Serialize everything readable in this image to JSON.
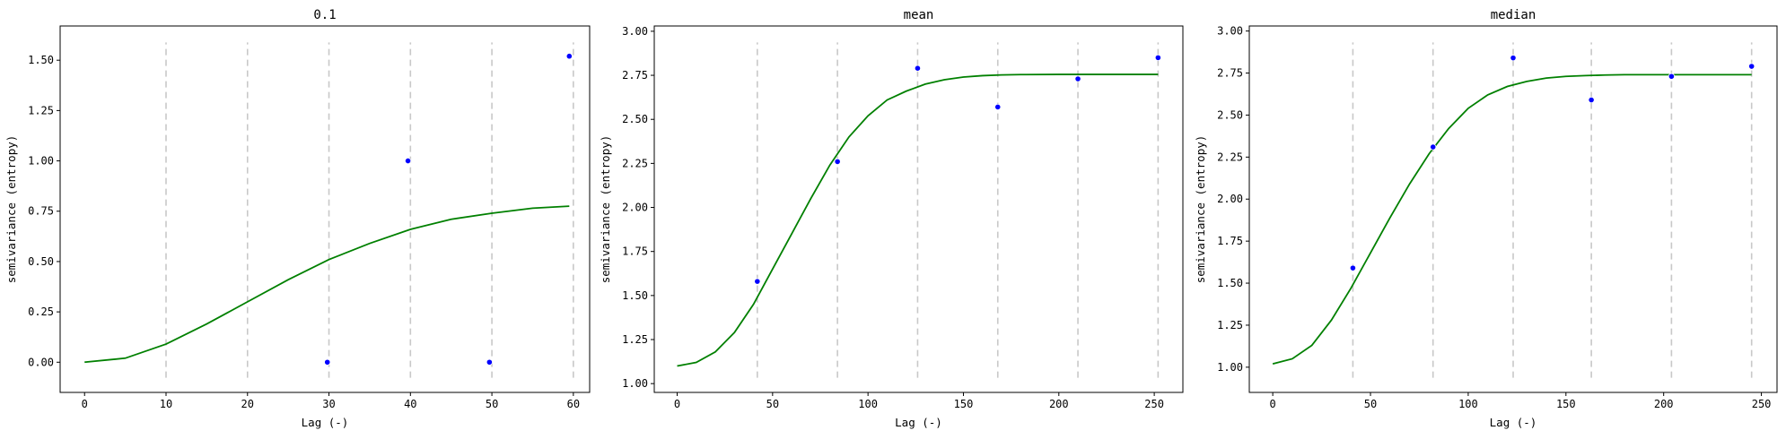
{
  "chart_data": [
    {
      "type": "line+scatter",
      "title": "0.1",
      "xlabel": "Lag (-)",
      "ylabel": "semivariance (entropy)",
      "xlim": [
        -3,
        62
      ],
      "ylim": [
        -0.15,
        1.67
      ],
      "xticks": [
        0,
        10,
        20,
        30,
        40,
        50,
        60
      ],
      "xtick_labels": [
        "0",
        "10",
        "20",
        "30",
        "40",
        "50",
        "60"
      ],
      "yticks": [
        0.0,
        0.25,
        0.5,
        0.75,
        1.0,
        1.25,
        1.5
      ],
      "ytick_labels": [
        "0.00",
        "0.25",
        "0.50",
        "0.75",
        "1.00",
        "1.25",
        "1.50"
      ],
      "bin_edges": [
        10,
        20,
        30,
        40,
        50,
        60
      ],
      "points": {
        "x": [
          29.8,
          39.7,
          49.7,
          59.5
        ],
        "y": [
          0.0,
          1.0,
          0.0,
          1.52
        ]
      },
      "model": {
        "x": [
          0,
          5,
          10,
          15,
          20,
          25,
          30,
          35,
          40,
          45,
          50,
          55,
          59.5
        ],
        "y": [
          0.0,
          0.02,
          0.09,
          0.19,
          0.3,
          0.41,
          0.51,
          0.59,
          0.66,
          0.71,
          0.74,
          0.765,
          0.775
        ]
      }
    },
    {
      "type": "line+scatter",
      "title": "mean",
      "xlabel": "Lag (-)",
      "ylabel": "semivariance (entropy)",
      "xlim": [
        -12,
        265
      ],
      "ylim": [
        0.95,
        3.03
      ],
      "xticks": [
        0,
        50,
        100,
        150,
        200,
        250
      ],
      "xtick_labels": [
        "0",
        "50",
        "100",
        "150",
        "200",
        "250"
      ],
      "yticks": [
        1.0,
        1.25,
        1.5,
        1.75,
        2.0,
        2.25,
        2.5,
        2.75,
        3.0
      ],
      "ytick_labels": [
        "1.00",
        "1.25",
        "1.50",
        "1.75",
        "2.00",
        "2.25",
        "2.50",
        "2.75",
        "3.00"
      ],
      "bin_edges": [
        42,
        84,
        126,
        168,
        210,
        252
      ],
      "points": {
        "x": [
          42,
          84,
          126,
          168,
          210,
          252
        ],
        "y": [
          1.58,
          2.26,
          2.79,
          2.57,
          2.73,
          2.85
        ]
      },
      "model": {
        "x": [
          0,
          10,
          20,
          30,
          40,
          50,
          60,
          70,
          80,
          90,
          100,
          110,
          120,
          130,
          140,
          150,
          160,
          170,
          180,
          200,
          220,
          252
        ],
        "y": [
          1.1,
          1.12,
          1.18,
          1.29,
          1.45,
          1.65,
          1.85,
          2.05,
          2.24,
          2.4,
          2.52,
          2.61,
          2.66,
          2.7,
          2.725,
          2.74,
          2.748,
          2.752,
          2.754,
          2.755,
          2.755,
          2.755
        ]
      }
    },
    {
      "type": "line+scatter",
      "title": "median",
      "xlabel": "Lag (-)",
      "ylabel": "semivariance (entropy)",
      "xlim": [
        -12,
        258
      ],
      "ylim": [
        0.85,
        3.03
      ],
      "xticks": [
        0,
        50,
        100,
        150,
        200,
        250
      ],
      "xtick_labels": [
        "0",
        "50",
        "100",
        "150",
        "200",
        "250"
      ],
      "yticks": [
        1.0,
        1.25,
        1.5,
        1.75,
        2.0,
        2.25,
        2.5,
        2.75,
        3.0
      ],
      "ytick_labels": [
        "1.00",
        "1.25",
        "1.50",
        "1.75",
        "2.00",
        "2.25",
        "2.50",
        "2.75",
        "3.00"
      ],
      "bin_edges": [
        41,
        82,
        123,
        163,
        204,
        245
      ],
      "points": {
        "x": [
          41,
          82,
          123,
          163,
          204,
          245
        ],
        "y": [
          1.59,
          2.31,
          2.84,
          2.59,
          2.73,
          2.79
        ]
      },
      "model": {
        "x": [
          0,
          10,
          20,
          30,
          40,
          50,
          60,
          70,
          80,
          90,
          100,
          110,
          120,
          130,
          140,
          150,
          160,
          170,
          180,
          200,
          220,
          245
        ],
        "y": [
          1.02,
          1.05,
          1.13,
          1.28,
          1.47,
          1.68,
          1.89,
          2.09,
          2.27,
          2.42,
          2.54,
          2.62,
          2.67,
          2.7,
          2.72,
          2.73,
          2.735,
          2.738,
          2.74,
          2.74,
          2.74,
          2.74
        ]
      }
    }
  ],
  "colors": {
    "model_line": "#008000",
    "points": "#0000ff",
    "bin_lines": "#c8c8c8",
    "axes": "#000000"
  }
}
